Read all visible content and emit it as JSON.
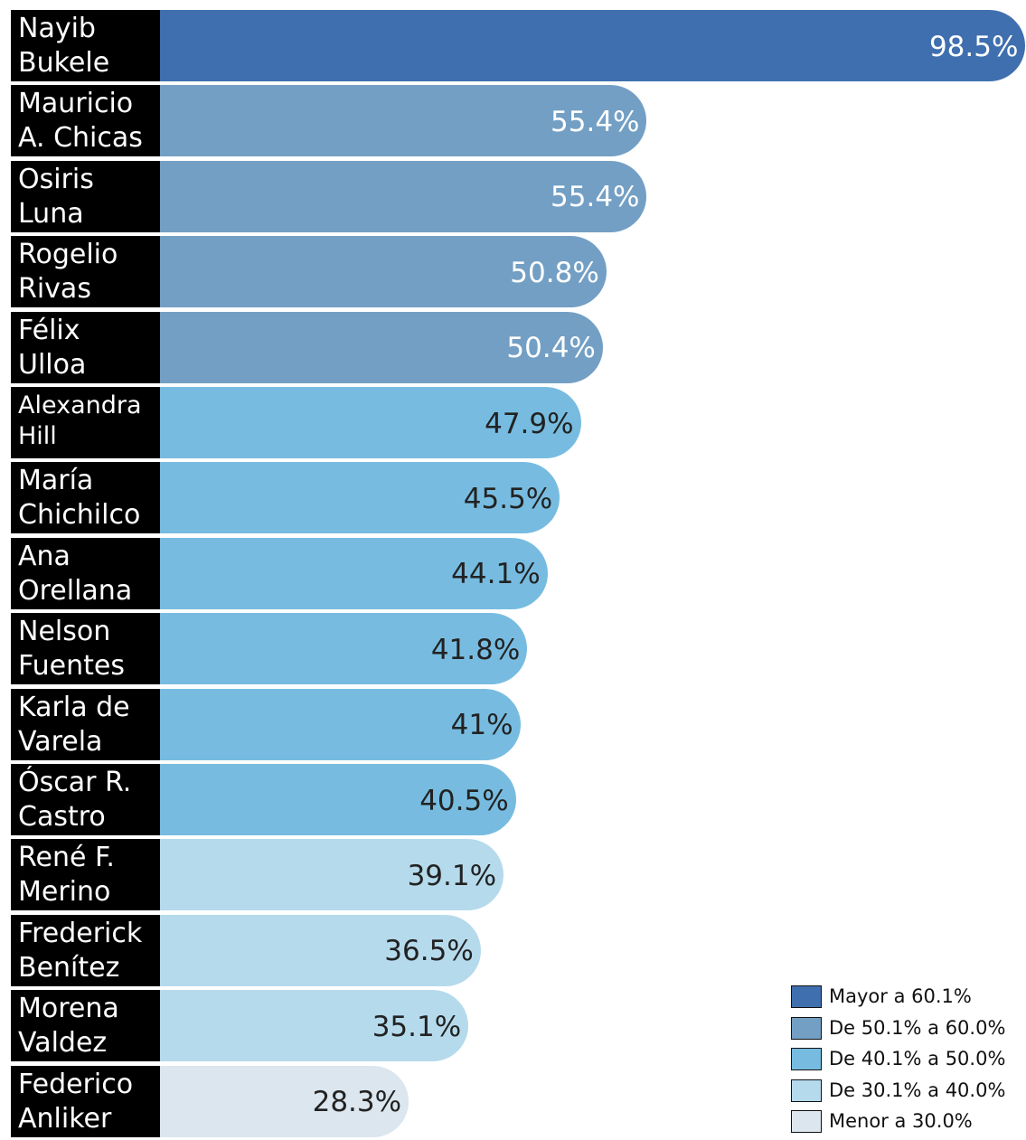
{
  "chart_data": {
    "type": "bar",
    "orientation": "horizontal",
    "categories": [
      "Nayib Bukele",
      "Mauricio A. Chicas",
      "Osiris Luna",
      "Rogelio Rivas",
      "Félix Ulloa",
      "Alexandra Hill",
      "María Chichilco",
      "Ana Orellana",
      "Nelson Fuentes",
      "Karla de Varela",
      "Óscar R. Castro",
      "René F. Merino",
      "Frederick Benítez",
      "Morena Valdez",
      "Federico Anliker"
    ],
    "name_lines": [
      [
        "Nayib",
        "Bukele"
      ],
      [
        "Mauricio",
        "A. Chicas"
      ],
      [
        "Osiris",
        "Luna"
      ],
      [
        "Rogelio",
        "Rivas"
      ],
      [
        "Félix",
        "Ulloa"
      ],
      [
        "Alexandra",
        "Hill"
      ],
      [
        "María",
        "Chichilco"
      ],
      [
        "Ana",
        "Orellana"
      ],
      [
        "Nelson",
        "Fuentes"
      ],
      [
        "Karla de",
        "Varela"
      ],
      [
        "Óscar R.",
        "Castro"
      ],
      [
        "René F.",
        "Merino"
      ],
      [
        "Frederick",
        "Benítez"
      ],
      [
        "Morena",
        "Valdez"
      ],
      [
        "Federico",
        "Anliker"
      ]
    ],
    "values": [
      98.5,
      55.4,
      55.4,
      50.8,
      50.4,
      47.9,
      45.5,
      44.1,
      41.8,
      41,
      40.5,
      39.1,
      36.5,
      35.1,
      28.3
    ],
    "value_labels": [
      "98.5%",
      "55.4%",
      "55.4%",
      "50.8%",
      "50.4%",
      "47.9%",
      "45.5%",
      "44.1%",
      "41.8%",
      "41%",
      "40.5%",
      "39.1%",
      "36.5%",
      "35.1%",
      "28.3%"
    ],
    "bar_category": [
      0,
      1,
      1,
      1,
      1,
      2,
      2,
      2,
      2,
      2,
      2,
      3,
      3,
      3,
      4
    ],
    "legend": [
      {
        "label": "Mayor a 60.1%",
        "color": "#3f6fae"
      },
      {
        "label": "De 50.1% a 60.0%",
        "color": "#739fc4"
      },
      {
        "label": "De 40.1% a 50.0%",
        "color": "#77bce0"
      },
      {
        "label": "De 30.1% a 40.0%",
        "color": "#b5daec"
      },
      {
        "label": "Menor a 30.0%",
        "color": "#dbe6ee"
      }
    ],
    "legend_placement": "bottom-right",
    "title": "",
    "xlabel": "",
    "ylabel": "",
    "grid": false
  }
}
